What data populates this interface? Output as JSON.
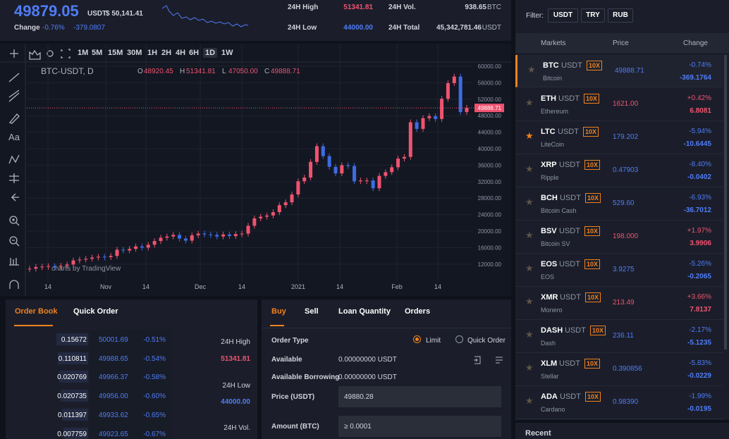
{
  "header": {
    "price": "49879.05",
    "quote": "USDT",
    "quote_value": "$ 50,141.41",
    "change_label": "Change",
    "change_pct": "-0.76%",
    "change_abs": "-379.0807",
    "stats": [
      {
        "label": "24H High",
        "value": "51341.81",
        "color": "#ef5370"
      },
      {
        "label": "24H Vol.",
        "value": "938.65",
        "unit": "BTC",
        "color": "#d1d4dc"
      },
      {
        "label": "24H Low",
        "value": "44000.00",
        "color": "#4f7cf7"
      },
      {
        "label": "24H Total",
        "value": "45,342,781.46",
        "unit": "USDT",
        "color": "#d1d4dc"
      }
    ]
  },
  "toolbar": {
    "intervals": [
      "1M",
      "5M",
      "15M",
      "30M",
      "1H",
      "2H",
      "4H",
      "6H",
      "1D",
      "1W"
    ],
    "active": "1D",
    "text_tool": "Aa"
  },
  "price_chart": {
    "symbol": "BTC-USDT, D",
    "ohlc": [
      {
        "key": "O",
        "value": "48920.45"
      },
      {
        "key": "H",
        "value": "51341.81"
      },
      {
        "key": "L",
        "value": "47050.00"
      },
      {
        "key": "C",
        "value": "49888.71"
      }
    ],
    "watermark": "charts by TradingView",
    "ylim": [
      7700,
      61025
    ],
    "yticks": [
      {
        "value": 60000,
        "label": "60000.00"
      },
      {
        "value": 56000,
        "label": "56000.00"
      },
      {
        "value": 52000,
        "label": "52000.00"
      },
      {
        "value": 48000,
        "label": "48000.00"
      },
      {
        "value": 44000,
        "label": "44000.00"
      },
      {
        "value": 40000,
        "label": "40000.00"
      },
      {
        "value": 36000,
        "label": "36000.00"
      },
      {
        "value": 32000,
        "label": "32000.00"
      },
      {
        "value": 28000,
        "label": "28000.00"
      },
      {
        "value": 24000,
        "label": "24000.00"
      },
      {
        "value": 20000,
        "label": "20000.00"
      },
      {
        "value": 16000,
        "label": "16000.00"
      },
      {
        "value": 12000,
        "label": "12000.00"
      }
    ],
    "last": {
      "value": 49888.71,
      "label": "49888.71"
    },
    "xlabels": [
      "14",
      "Nov",
      "14",
      "Dec",
      "14",
      "2021",
      "14",
      "Feb",
      "14"
    ],
    "up_color": "#ef5370",
    "down_color": "#3d6ce3",
    "closes": [
      10900,
      11300,
      11400,
      11500,
      11400,
      11600,
      11900,
      12900,
      13100,
      13300,
      13600,
      13800,
      13700,
      14000,
      15500,
      15300,
      15700,
      16300,
      16000,
      16700,
      17600,
      18400,
      18700,
      19100,
      18200,
      17700,
      19000,
      19400,
      19200,
      19100,
      18700,
      19200,
      18800,
      19300,
      19400,
      21300,
      23100,
      23500,
      23800,
      24600,
      26300,
      27000,
      28900,
      32100,
      33000,
      36800,
      40600,
      38200,
      35600,
      34000,
      36000,
      35800,
      32100,
      32300,
      32300,
      30400,
      33400,
      34300,
      35500,
      37600,
      38000,
      46400,
      44800,
      47400,
      47900,
      47200,
      52100,
      55900,
      57500,
      48900,
      49900
    ]
  },
  "filter": {
    "label": "Filter:",
    "options": [
      "USDT",
      "TRY",
      "RUB"
    ]
  },
  "markets": {
    "columns": [
      "Markets",
      "Price",
      "Change"
    ],
    "rows": [
      {
        "symbol": "BTC",
        "quote": "USDT",
        "leverage": "10X",
        "name": "Bitcoin",
        "price": "49888.71",
        "price_color": "#4f7cf7",
        "change_pct": "-0.74%",
        "change_abs": "-369.1764",
        "favorite": false
      },
      {
        "symbol": "ETH",
        "quote": "USDT",
        "leverage": "10X",
        "name": "Ethereum",
        "price": "1621.00",
        "price_color": "#ef5370",
        "change_pct": "+0.42%",
        "change_abs": "6.8081",
        "favorite": false
      },
      {
        "symbol": "LTC",
        "quote": "USDT",
        "leverage": "10X",
        "name": "LiteCoin",
        "price": "179.202",
        "price_color": "#4f7cf7",
        "change_pct": "-5.94%",
        "change_abs": "-10.6445",
        "favorite": true
      },
      {
        "symbol": "XRP",
        "quote": "USDT",
        "leverage": "10X",
        "name": "Ripple",
        "price": "0.47903",
        "price_color": "#4f7cf7",
        "change_pct": "-8.40%",
        "change_abs": "-0.0402",
        "favorite": false
      },
      {
        "symbol": "BCH",
        "quote": "USDT",
        "leverage": "10X",
        "name": "Bitcoin Cash",
        "price": "529.60",
        "price_color": "#4f7cf7",
        "change_pct": "-6.93%",
        "change_abs": "-36.7012",
        "favorite": false
      },
      {
        "symbol": "BSV",
        "quote": "USDT",
        "leverage": "10X",
        "name": "Bitcoin SV",
        "price": "198.000",
        "price_color": "#ef5370",
        "change_pct": "+1.97%",
        "change_abs": "3.9906",
        "favorite": false
      },
      {
        "symbol": "EOS",
        "quote": "USDT",
        "leverage": "10X",
        "name": "EOS",
        "price": "3.9275",
        "price_color": "#4f7cf7",
        "change_pct": "-5.26%",
        "change_abs": "-0.2065",
        "favorite": false
      },
      {
        "symbol": "XMR",
        "quote": "USDT",
        "leverage": "10X",
        "name": "Monero",
        "price": "213.49",
        "price_color": "#ef5370",
        "change_pct": "+3.66%",
        "change_abs": "7.8137",
        "favorite": false
      },
      {
        "symbol": "DASH",
        "quote": "USDT",
        "leverage": "10X",
        "name": "Dash",
        "price": "236.11",
        "price_color": "#4f7cf7",
        "change_pct": "-2.17%",
        "change_abs": "-5.1235",
        "favorite": false
      },
      {
        "symbol": "XLM",
        "quote": "USDT",
        "leverage": "10X",
        "name": "Stellar",
        "price": "0.390856",
        "price_color": "#4f7cf7",
        "change_pct": "-5.83%",
        "change_abs": "-0.0229",
        "favorite": false
      },
      {
        "symbol": "ADA",
        "quote": "USDT",
        "leverage": "10X",
        "name": "Cardano",
        "price": "0.98390",
        "price_color": "#4f7cf7",
        "change_pct": "-1.99%",
        "change_abs": "-0.0195",
        "favorite": false
      }
    ],
    "recent": "Recent"
  },
  "order_book": {
    "tabs": [
      "Order Book",
      "Quick Order"
    ],
    "rows": [
      [
        "0.15672",
        "50001.69",
        "-0.51%"
      ],
      [
        "0.110811",
        "49988.65",
        "-0.54%"
      ],
      [
        "0.020769",
        "49966.37",
        "-0.58%"
      ],
      [
        "0.020735",
        "49956.00",
        "-0.60%"
      ],
      [
        "0.011397",
        "49933.62",
        "-0.65%"
      ],
      [
        "0.007759",
        "49923.65",
        "-0.67%"
      ]
    ],
    "side": [
      {
        "label": "24H High",
        "value": "51341.81",
        "color": "#ef5370"
      },
      {
        "label": "24H Low",
        "value": "44000.00",
        "color": "#4f7cf7"
      },
      {
        "label": "24H Vol."
      }
    ]
  },
  "trade": {
    "tabs": [
      "Buy",
      "Sell",
      "Loan Quantity",
      "Orders"
    ],
    "order_type": "Order Type",
    "options": [
      "Limit",
      "Quick Order"
    ],
    "available": {
      "label": "Available",
      "value": "0.00000000 USDT"
    },
    "borrowing": {
      "label": "Available Borrowing",
      "value": "0.00000000 USDT"
    },
    "price": {
      "label": "Price (USDT)",
      "value": "49880.28"
    },
    "amount": {
      "label": "Amount (BTC)",
      "value": "≥ 0.0001"
    }
  }
}
